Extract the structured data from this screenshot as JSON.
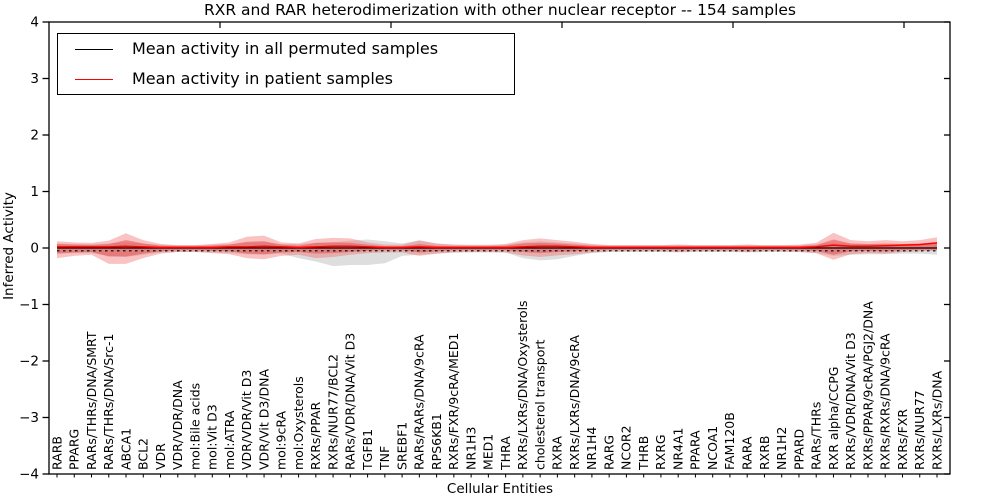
{
  "legend": {
    "items": [
      {
        "label": "Mean activity in all permuted samples",
        "color": "#000000"
      },
      {
        "label": "Mean activity in patient samples",
        "color": "#ff0000"
      }
    ]
  },
  "chart_data": {
    "type": "line",
    "title": "RXR and RAR heterodimerization with other nuclear receptor -- 154 samples",
    "xlabel": "Cellular Entities",
    "ylabel": "Inferred Activity",
    "ylim": [
      -4,
      4
    ],
    "yticks": [
      "4",
      "3",
      "2",
      "1",
      "0",
      "−1",
      "−2",
      "−3",
      "−4"
    ],
    "ytick_values": [
      4,
      3,
      2,
      1,
      0,
      -1,
      -2,
      -3,
      -4
    ],
    "grid": false,
    "legend_position": "upper left",
    "categories": [
      "RARB",
      "PPARG",
      "RARs/THRs/DNA/SMRT",
      "RARs/THRs/DNA/Src-1",
      "ABCA1",
      "BCL2",
      "VDR",
      "VDR/VDR/DNA",
      "mol:Bile acids",
      "mol:Vit D3",
      "mol:ATRA",
      "VDR/VDR/Vit D3",
      "VDR/Vit D3/DNA",
      "mol:9cRA",
      "mol:Oxysterols",
      "RXRs/PPAR",
      "RXRs/NUR77/BCL2",
      "RARs/VDR/DNA/Vit D3",
      "TGFB1",
      "TNF",
      "SREBF1",
      "RARs/RARs/DNA/9cRA",
      "RPS6KB1",
      "RXRs/FXR/9cRA/MED1",
      "NR1H3",
      "MED1",
      "THRA",
      "RXRs/LXRs/DNA/Oxysterols",
      "cholesterol transport",
      "RXRA",
      "RXRs/LXRs/DNA/9cRA",
      "NR1H4",
      "RARG",
      "NCOR2",
      "THRB",
      "RXRG",
      "NR4A1",
      "PPARA",
      "NCOA1",
      "FAM120B",
      "RARA",
      "RXRB",
      "NR1H2",
      "PPARD",
      "RARs/THRs",
      "RXR alpha/CCPG",
      "RXRs/VDR/DNA/Vit D3",
      "RXRs/PPAR/9cRA/PGJ2/DNA",
      "RXRs/RXRs/DNA/9cRA",
      "RXRs/FXR",
      "RXRs/NUR77",
      "RXRs/LXRs/DNA"
    ],
    "series": [
      {
        "name": "Mean activity in all permuted samples",
        "color": "#000000",
        "linestyle": "solid",
        "values": [
          0,
          0,
          0,
          0,
          0,
          0,
          0,
          0,
          0,
          0,
          0,
          0,
          0,
          0,
          0,
          0,
          0,
          0,
          0,
          0,
          0,
          0,
          0,
          0,
          0,
          0,
          0,
          0,
          0,
          0,
          0,
          0,
          0,
          0,
          0,
          0,
          0,
          0,
          0,
          0,
          0,
          0,
          0,
          0,
          0,
          0,
          0,
          0,
          0,
          0,
          0,
          0
        ]
      },
      {
        "name": "Mean activity in patient samples",
        "color": "#ff0000",
        "linestyle": "solid",
        "values": [
          0.02,
          0.02,
          0.02,
          0.02,
          0.03,
          0.02,
          0.01,
          0.01,
          0.01,
          0.01,
          0.02,
          0.02,
          0.03,
          0.02,
          0.01,
          0.02,
          0.03,
          0.03,
          0.02,
          0.01,
          0.01,
          0.02,
          0.01,
          0.01,
          0.01,
          0.01,
          0.01,
          0.02,
          0.03,
          0.03,
          0.02,
          0.01,
          0.01,
          0.01,
          0.01,
          0.01,
          0.01,
          0.01,
          0.01,
          0.01,
          0.01,
          0.01,
          0.01,
          0.01,
          0.02,
          0.05,
          0.03,
          0.03,
          0.04,
          0.05,
          0.06,
          0.09
        ]
      }
    ],
    "reference_line": {
      "y": -0.05,
      "color": "#000000",
      "linestyle": "dashed"
    },
    "bands": [
      {
        "name": "permuted-activity-range",
        "color": "#bdbdbd",
        "opacity": 0.5,
        "upper": [
          0.08,
          0.07,
          0.07,
          0.08,
          0.1,
          0.08,
          0.06,
          0.05,
          0.05,
          0.06,
          0.07,
          0.09,
          0.1,
          0.07,
          0.07,
          0.09,
          0.1,
          0.13,
          0.15,
          0.12,
          0.08,
          0.14,
          0.08,
          0.06,
          0.06,
          0.06,
          0.06,
          0.1,
          0.12,
          0.1,
          0.08,
          0.06,
          0.05,
          0.05,
          0.05,
          0.05,
          0.06,
          0.05,
          0.05,
          0.05,
          0.06,
          0.05,
          0.05,
          0.05,
          0.07,
          0.1,
          0.08,
          0.07,
          0.07,
          0.06,
          0.06,
          0.07
        ],
        "lower": [
          -0.1,
          -0.09,
          -0.09,
          -0.14,
          -0.16,
          -0.12,
          -0.08,
          -0.07,
          -0.07,
          -0.08,
          -0.09,
          -0.11,
          -0.12,
          -0.1,
          -0.18,
          -0.24,
          -0.32,
          -0.3,
          -0.3,
          -0.27,
          -0.14,
          -0.12,
          -0.1,
          -0.08,
          -0.08,
          -0.08,
          -0.08,
          -0.18,
          -0.22,
          -0.2,
          -0.14,
          -0.09,
          -0.07,
          -0.07,
          -0.07,
          -0.07,
          -0.08,
          -0.07,
          -0.07,
          -0.07,
          -0.08,
          -0.07,
          -0.07,
          -0.07,
          -0.09,
          -0.14,
          -0.12,
          -0.11,
          -0.11,
          -0.1,
          -0.1,
          -0.12
        ]
      },
      {
        "name": "patient-activity-range-outer",
        "color": "#ee6060",
        "opacity": 0.38,
        "upper": [
          0.12,
          0.1,
          0.09,
          0.13,
          0.26,
          0.14,
          0.07,
          0.05,
          0.05,
          0.07,
          0.1,
          0.2,
          0.22,
          0.1,
          0.08,
          0.16,
          0.18,
          0.17,
          0.1,
          0.06,
          0.06,
          0.13,
          0.08,
          0.06,
          0.05,
          0.05,
          0.07,
          0.14,
          0.17,
          0.14,
          0.11,
          0.07,
          0.05,
          0.05,
          0.05,
          0.05,
          0.06,
          0.05,
          0.05,
          0.05,
          0.06,
          0.05,
          0.05,
          0.06,
          0.09,
          0.27,
          0.14,
          0.12,
          0.14,
          0.12,
          0.14,
          0.19
        ],
        "lower": [
          -0.18,
          -0.14,
          -0.12,
          -0.28,
          -0.28,
          -0.18,
          -0.1,
          -0.07,
          -0.07,
          -0.09,
          -0.11,
          -0.18,
          -0.2,
          -0.14,
          -0.12,
          -0.18,
          -0.16,
          -0.12,
          -0.09,
          -0.08,
          -0.08,
          -0.14,
          -0.1,
          -0.08,
          -0.07,
          -0.07,
          -0.08,
          -0.13,
          -0.16,
          -0.13,
          -0.11,
          -0.08,
          -0.06,
          -0.06,
          -0.06,
          -0.06,
          -0.07,
          -0.06,
          -0.06,
          -0.06,
          -0.07,
          -0.06,
          -0.06,
          -0.07,
          -0.09,
          -0.21,
          -0.11,
          -0.09,
          -0.1,
          -0.07,
          -0.06,
          -0.05
        ]
      },
      {
        "name": "patient-activity-range-inner",
        "color": "#e64545",
        "opacity": 0.5,
        "upper": [
          0.07,
          0.06,
          0.05,
          0.07,
          0.14,
          0.08,
          0.04,
          0.03,
          0.03,
          0.04,
          0.06,
          0.11,
          0.12,
          0.06,
          0.04,
          0.09,
          0.1,
          0.09,
          0.06,
          0.03,
          0.03,
          0.07,
          0.04,
          0.03,
          0.03,
          0.03,
          0.04,
          0.08,
          0.09,
          0.08,
          0.06,
          0.04,
          0.03,
          0.03,
          0.03,
          0.03,
          0.03,
          0.03,
          0.03,
          0.03,
          0.03,
          0.03,
          0.03,
          0.03,
          0.05,
          0.15,
          0.08,
          0.07,
          0.08,
          0.07,
          0.08,
          0.1
        ],
        "lower": [
          -0.1,
          -0.08,
          -0.07,
          -0.15,
          -0.15,
          -0.1,
          -0.06,
          -0.04,
          -0.04,
          -0.05,
          -0.06,
          -0.1,
          -0.11,
          -0.08,
          -0.07,
          -0.1,
          -0.09,
          -0.07,
          -0.05,
          -0.04,
          -0.04,
          -0.08,
          -0.06,
          -0.04,
          -0.04,
          -0.04,
          -0.04,
          -0.07,
          -0.09,
          -0.07,
          -0.06,
          -0.04,
          -0.03,
          -0.03,
          -0.03,
          -0.03,
          -0.04,
          -0.03,
          -0.03,
          -0.03,
          -0.04,
          -0.03,
          -0.03,
          -0.04,
          -0.05,
          -0.12,
          -0.06,
          -0.05,
          -0.06,
          -0.04,
          -0.03,
          -0.03
        ]
      }
    ]
  }
}
